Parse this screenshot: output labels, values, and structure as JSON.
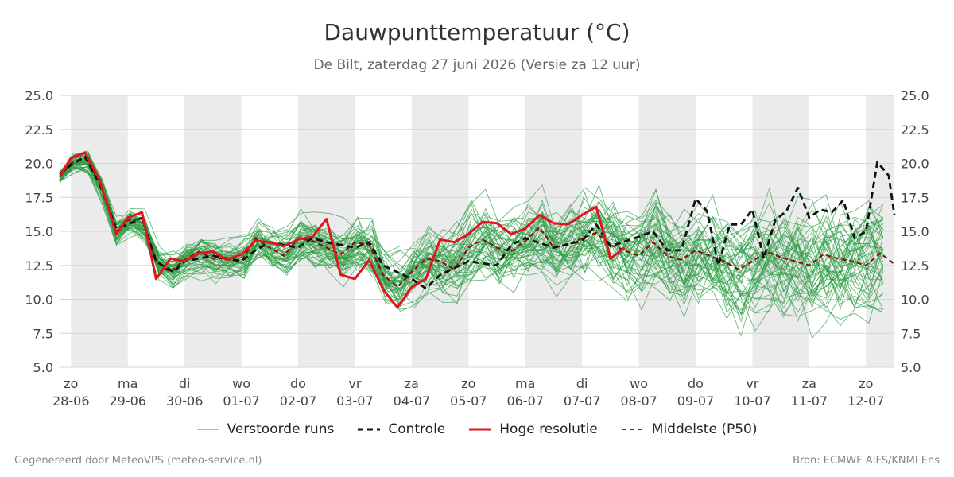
{
  "title": "Dauwpunttemperatuur (°C)",
  "subtitle": "De Bilt, zaterdag 27 juni 2026 (Versie za 12 uur)",
  "footer": {
    "left": "Gegenereerd door MeteoVPS (meteo-service.nl)",
    "right": "Bron: ECMWF AIFS/KNMI Ens"
  },
  "colors": {
    "ensemble": "#2e9e46",
    "control": "#111111",
    "high_res": "#e3141e",
    "median": "#8b1010",
    "weekend_band": "#ebebeb",
    "grid": "#d6d6d6"
  },
  "legend": [
    {
      "label": "Verstoorde runs",
      "icon": "thin-green-line-icon"
    },
    {
      "label": "Controle",
      "icon": "black-dashed-line-icon"
    },
    {
      "label": "Hoge resolutie",
      "icon": "red-line-icon"
    },
    {
      "label": "Middelste (P50)",
      "icon": "darkred-dashed-line-icon"
    }
  ],
  "chart_data": {
    "type": "line",
    "title": "Dauwpunttemperatuur (°C)",
    "ylim": [
      5.0,
      25.0
    ],
    "y_ticks": [
      "5.0",
      "7.5",
      "10.0",
      "12.5",
      "15.0",
      "17.5",
      "20.0",
      "22.5",
      "25.0"
    ],
    "x_day_index_range": [
      -0.2,
      14.5
    ],
    "x_ticks": [
      {
        "day": "zo",
        "date": "28-06",
        "x": 0
      },
      {
        "day": "ma",
        "date": "29-06",
        "x": 1
      },
      {
        "day": "di",
        "date": "30-06",
        "x": 2
      },
      {
        "day": "wo",
        "date": "01-07",
        "x": 3
      },
      {
        "day": "do",
        "date": "02-07",
        "x": 4
      },
      {
        "day": "vr",
        "date": "03-07",
        "x": 5
      },
      {
        "day": "za",
        "date": "04-07",
        "x": 6
      },
      {
        "day": "zo",
        "date": "05-07",
        "x": 7
      },
      {
        "day": "ma",
        "date": "06-07",
        "x": 8
      },
      {
        "day": "di",
        "date": "07-07",
        "x": 9
      },
      {
        "day": "wo",
        "date": "08-07",
        "x": 10
      },
      {
        "day": "do",
        "date": "09-07",
        "x": 11
      },
      {
        "day": "vr",
        "date": "10-07",
        "x": 12
      },
      {
        "day": "za",
        "date": "11-07",
        "x": 13
      },
      {
        "day": "zo",
        "date": "12-07",
        "x": 14
      }
    ],
    "shaded_bands": [
      [
        0,
        1
      ],
      [
        2,
        3
      ],
      [
        4,
        5
      ],
      [
        6,
        7
      ],
      [
        8,
        9
      ],
      [
        10,
        11
      ],
      [
        12,
        13
      ],
      [
        14,
        14.5
      ]
    ],
    "grid": true,
    "legend_position": "bottom",
    "ensemble_member_count": 50,
    "series": [
      {
        "name": "Controle",
        "style": "dashed",
        "points": [
          [
            -0.2,
            19.2
          ],
          [
            0,
            19.9
          ],
          [
            0.25,
            20.5
          ],
          [
            0.5,
            18.5
          ],
          [
            0.8,
            15.2
          ],
          [
            1,
            15.5
          ],
          [
            1.25,
            16.0
          ],
          [
            1.5,
            12.8
          ],
          [
            1.8,
            12.0
          ],
          [
            2,
            12.8
          ],
          [
            2.5,
            13.2
          ],
          [
            3,
            12.8
          ],
          [
            3.25,
            13.6
          ],
          [
            3.5,
            14.2
          ],
          [
            4,
            13.8
          ],
          [
            4.25,
            14.5
          ],
          [
            4.5,
            14.2
          ],
          [
            5,
            13.8
          ],
          [
            5.25,
            14.2
          ],
          [
            5.5,
            12.5
          ],
          [
            6,
            11.5
          ],
          [
            6.25,
            10.8
          ],
          [
            6.5,
            11.8
          ],
          [
            7,
            12.8
          ],
          [
            7.5,
            12.5
          ],
          [
            7.75,
            14.0
          ],
          [
            8,
            14.5
          ],
          [
            8.5,
            13.8
          ],
          [
            9,
            14.3
          ],
          [
            9.25,
            15.5
          ],
          [
            9.5,
            13.9
          ],
          [
            10,
            14.6
          ],
          [
            10.25,
            15.0
          ],
          [
            10.5,
            13.6
          ],
          [
            10.75,
            13.6
          ],
          [
            11,
            17.4
          ],
          [
            11.2,
            16.5
          ],
          [
            11.4,
            12.5
          ],
          [
            11.6,
            15.5
          ],
          [
            11.8,
            15.5
          ],
          [
            12,
            16.6
          ],
          [
            12.2,
            13.0
          ],
          [
            12.4,
            15.8
          ],
          [
            12.6,
            16.5
          ],
          [
            12.8,
            18.2
          ],
          [
            13,
            16.0
          ],
          [
            13.2,
            16.6
          ],
          [
            13.4,
            16.4
          ],
          [
            13.6,
            17.3
          ],
          [
            13.8,
            14.5
          ],
          [
            14,
            15.0
          ],
          [
            14.2,
            20.1
          ],
          [
            14.4,
            19.1
          ],
          [
            14.5,
            16.2
          ]
        ]
      },
      {
        "name": "Hoge resolutie",
        "style": "solid",
        "points": [
          [
            -0.2,
            19.0
          ],
          [
            0,
            20.4
          ],
          [
            0.25,
            20.8
          ],
          [
            0.5,
            18.8
          ],
          [
            0.8,
            14.8
          ],
          [
            1,
            16.0
          ],
          [
            1.25,
            16.4
          ],
          [
            1.5,
            11.5
          ],
          [
            1.75,
            13.0
          ],
          [
            2,
            12.8
          ],
          [
            2.25,
            13.4
          ],
          [
            2.5,
            13.5
          ],
          [
            2.75,
            12.9
          ],
          [
            3,
            13.3
          ],
          [
            3.25,
            14.3
          ],
          [
            3.5,
            14.2
          ],
          [
            3.75,
            13.9
          ],
          [
            4,
            14.4
          ],
          [
            4.25,
            14.6
          ],
          [
            4.5,
            15.9
          ],
          [
            4.75,
            11.8
          ],
          [
            5,
            11.5
          ],
          [
            5.25,
            12.9
          ],
          [
            5.5,
            10.7
          ],
          [
            5.75,
            9.4
          ],
          [
            6,
            10.9
          ],
          [
            6.25,
            11.5
          ],
          [
            6.5,
            14.4
          ],
          [
            6.75,
            14.2
          ],
          [
            7,
            14.8
          ],
          [
            7.25,
            15.7
          ],
          [
            7.5,
            15.6
          ],
          [
            7.75,
            14.8
          ],
          [
            8,
            15.2
          ],
          [
            8.25,
            16.2
          ],
          [
            8.5,
            15.6
          ],
          [
            8.75,
            15.5
          ],
          [
            9,
            16.2
          ],
          [
            9.25,
            16.8
          ],
          [
            9.5,
            13.0
          ],
          [
            9.75,
            13.8
          ]
        ]
      },
      {
        "name": "Middelste (P50)",
        "style": "dashed",
        "points": [
          [
            -0.2,
            19.0
          ],
          [
            0,
            20.0
          ],
          [
            0.25,
            20.4
          ],
          [
            0.5,
            18.7
          ],
          [
            0.8,
            15.0
          ],
          [
            1,
            15.8
          ],
          [
            1.25,
            15.9
          ],
          [
            1.5,
            12.8
          ],
          [
            1.75,
            12.0
          ],
          [
            2,
            12.9
          ],
          [
            2.25,
            13.5
          ],
          [
            2.5,
            13.0
          ],
          [
            2.75,
            13.0
          ],
          [
            3,
            12.8
          ],
          [
            3.25,
            14.5
          ],
          [
            3.5,
            13.8
          ],
          [
            3.75,
            13.2
          ],
          [
            4,
            14.5
          ],
          [
            4.25,
            14.3
          ],
          [
            4.5,
            13.8
          ],
          [
            4.75,
            13.3
          ],
          [
            5,
            14.2
          ],
          [
            5.25,
            14.0
          ],
          [
            5.5,
            11.8
          ],
          [
            5.75,
            10.9
          ],
          [
            6,
            12.0
          ],
          [
            6.25,
            13.0
          ],
          [
            6.5,
            12.8
          ],
          [
            6.75,
            12.2
          ],
          [
            7,
            13.8
          ],
          [
            7.25,
            14.4
          ],
          [
            7.5,
            13.8
          ],
          [
            7.75,
            13.5
          ],
          [
            8,
            14.3
          ],
          [
            8.25,
            15.3
          ],
          [
            8.5,
            13.8
          ],
          [
            8.75,
            14.0
          ],
          [
            9,
            14.5
          ],
          [
            9.25,
            14.9
          ],
          [
            9.5,
            14.0
          ],
          [
            9.75,
            13.6
          ],
          [
            10,
            13.2
          ],
          [
            10.25,
            14.2
          ],
          [
            10.5,
            13.2
          ],
          [
            10.75,
            12.9
          ],
          [
            11,
            13.6
          ],
          [
            11.25,
            13.2
          ],
          [
            11.5,
            12.8
          ],
          [
            11.75,
            12.2
          ],
          [
            12,
            12.8
          ],
          [
            12.25,
            13.5
          ],
          [
            12.5,
            13.1
          ],
          [
            12.75,
            12.8
          ],
          [
            13,
            12.5
          ],
          [
            13.25,
            13.3
          ],
          [
            13.5,
            13.0
          ],
          [
            13.75,
            12.8
          ],
          [
            14,
            12.5
          ],
          [
            14.25,
            13.4
          ],
          [
            14.5,
            12.6
          ]
        ]
      }
    ]
  }
}
